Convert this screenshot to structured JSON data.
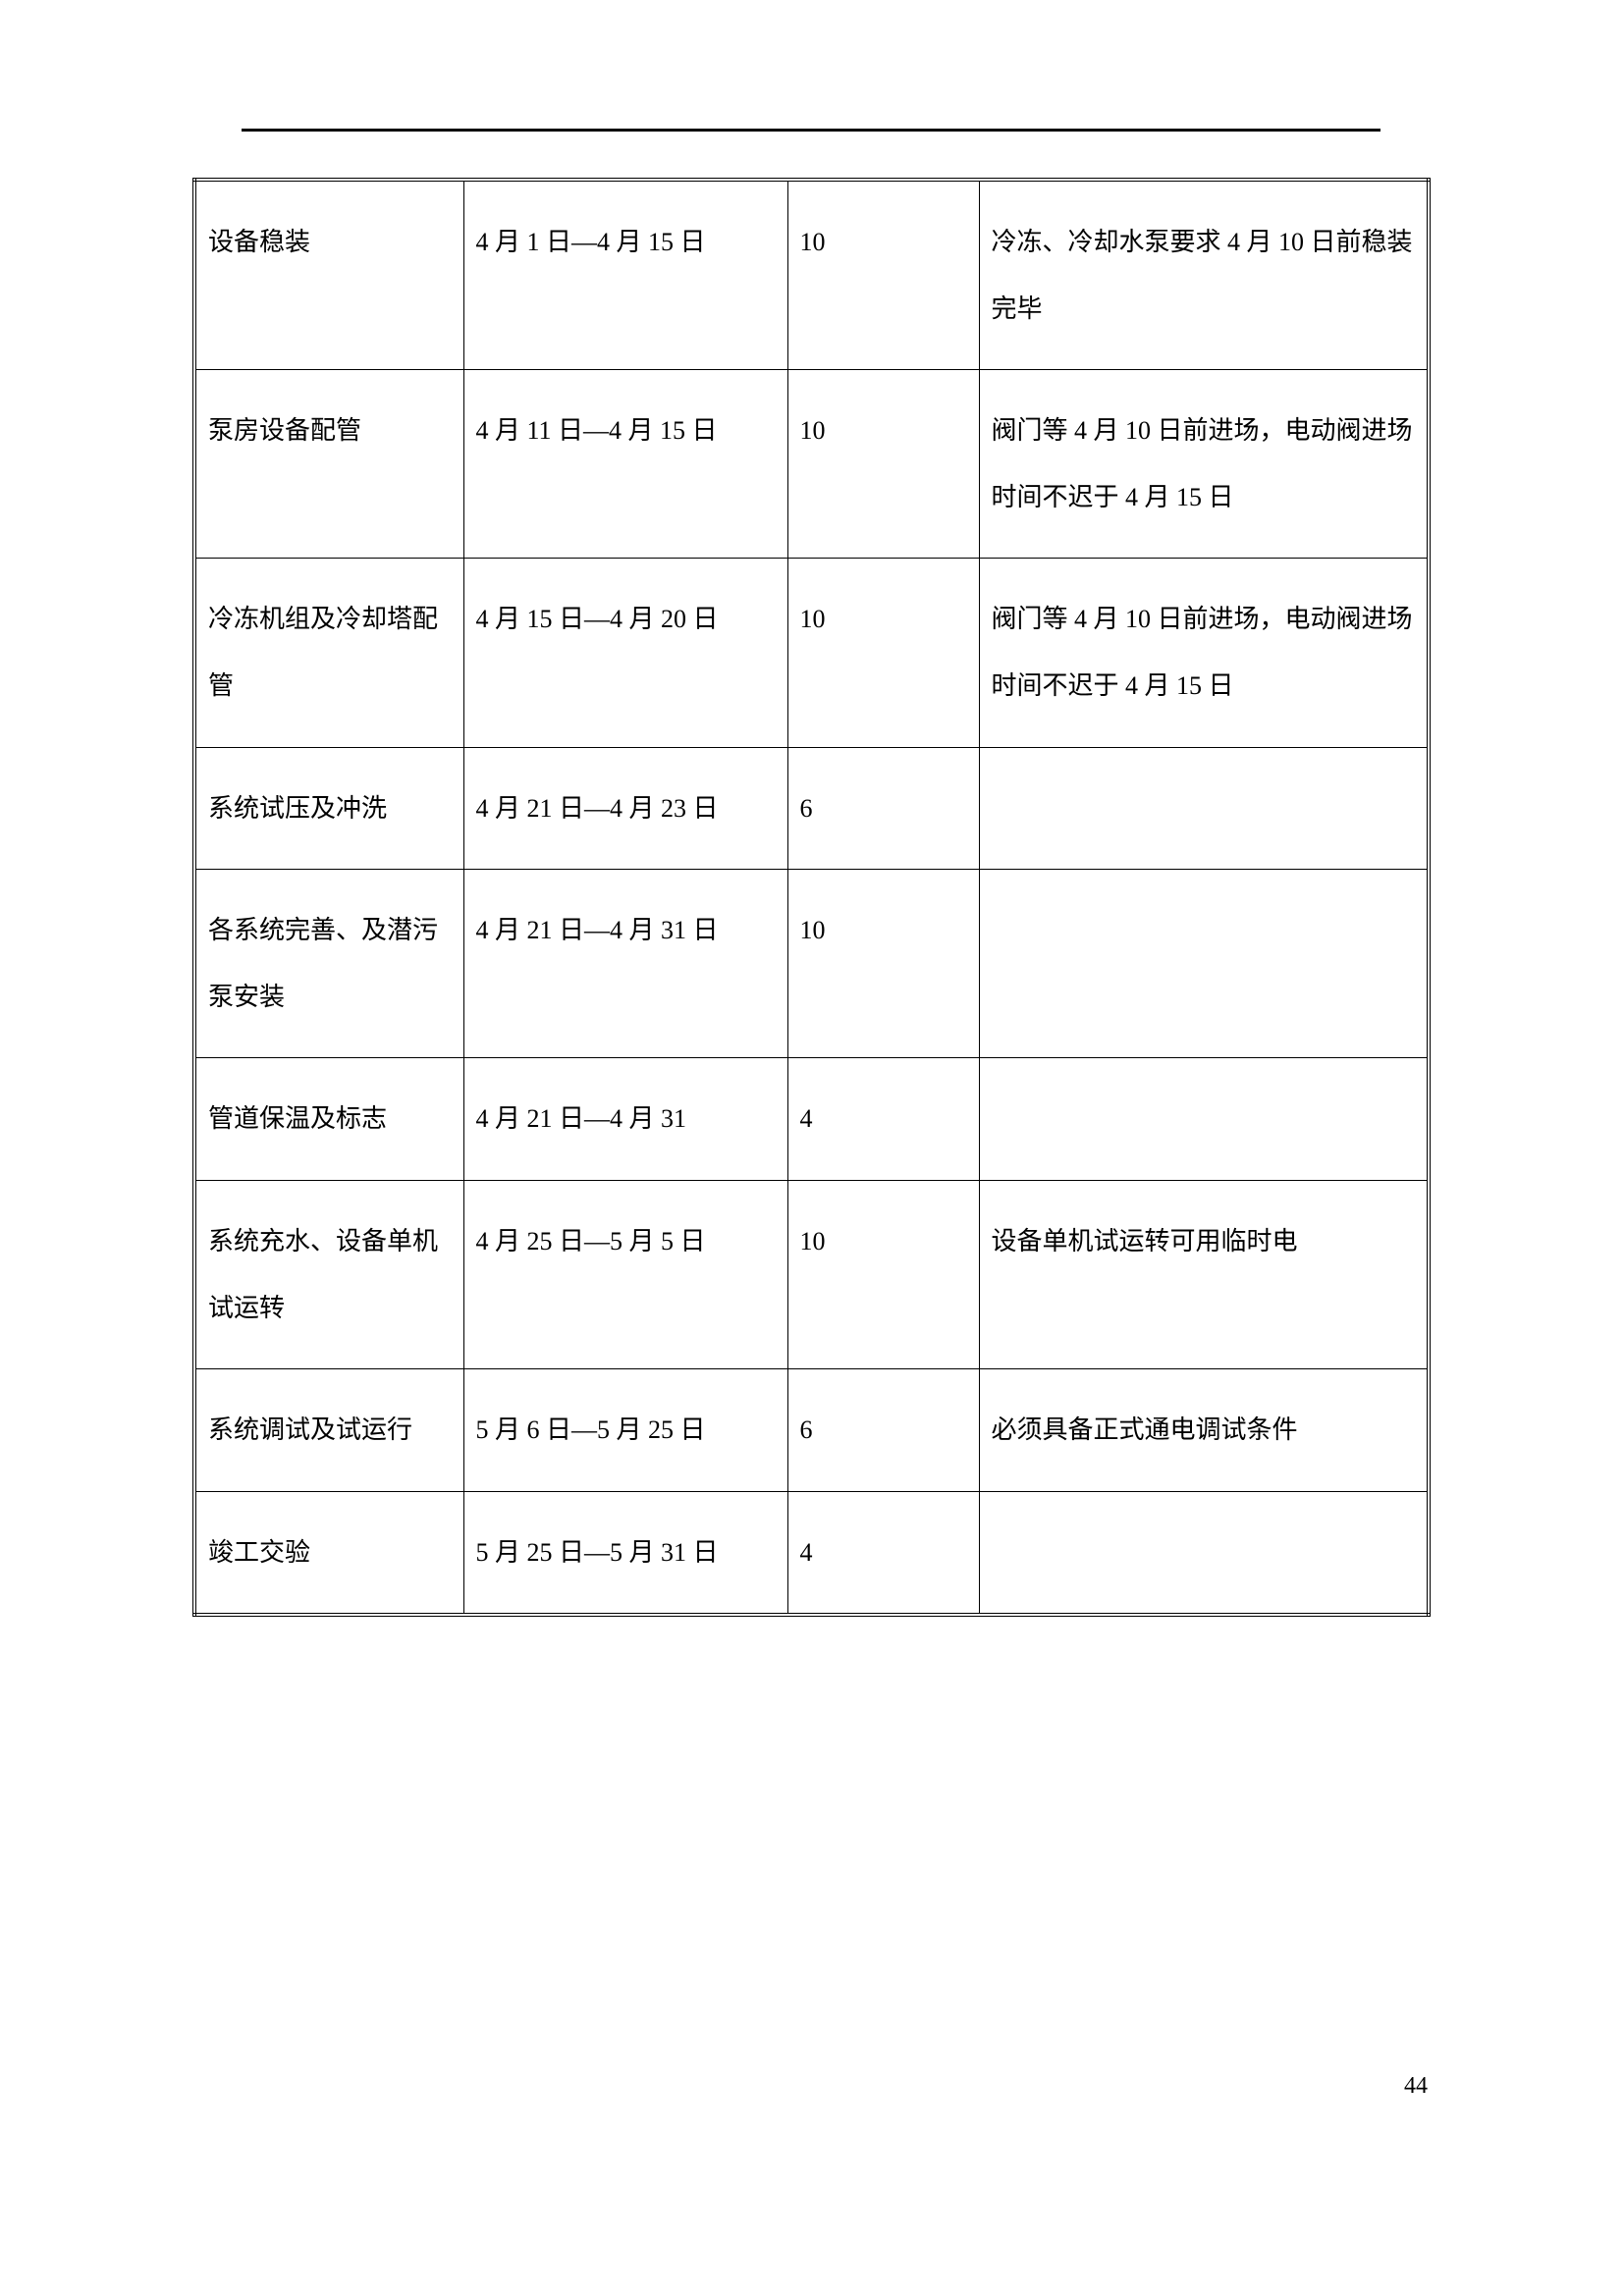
{
  "page_number": "44",
  "table": {
    "rows": [
      {
        "task": "设备稳装",
        "date_range": "4 月 1 日—4 月 15 日",
        "count": "10",
        "remark": "冷冻、冷却水泵要求 4 月 10 日前稳装完毕"
      },
      {
        "task": "泵房设备配管",
        "date_range": "4 月 11 日—4 月 15 日",
        "count": "10",
        "remark": "阀门等 4 月 10 日前进场，电动阀进场时间不迟于 4 月 15 日"
      },
      {
        "task": "冷冻机组及冷却塔配管",
        "date_range": "4 月 15 日—4 月 20 日",
        "count": "10",
        "remark": "阀门等 4 月 10 日前进场，电动阀进场时间不迟于 4 月 15 日"
      },
      {
        "task": "系统试压及冲洗",
        "date_range": "4 月 21 日—4 月 23 日",
        "count": "6",
        "remark": ""
      },
      {
        "task": "各系统完善、及潜污泵安装",
        "date_range": "4 月 21 日—4 月 31 日",
        "count": "10",
        "remark": ""
      },
      {
        "task": "管道保温及标志",
        "date_range": "4 月 21 日—4 月 31",
        "count": "4",
        "remark": ""
      },
      {
        "task": "系统充水、设备单机试运转",
        "date_range": "4 月 25 日—5 月 5 日",
        "count": "10",
        "remark": "设备单机试运转可用临时电"
      },
      {
        "task": "系统调试及试运行",
        "date_range": "5 月 6 日—5 月 25 日",
        "count": "6",
        "remark": "必须具备正式通电调试条件"
      },
      {
        "task": "竣工交验",
        "date_range": "5 月 25 日—5 月 31 日",
        "count": "4",
        "remark": ""
      }
    ]
  }
}
